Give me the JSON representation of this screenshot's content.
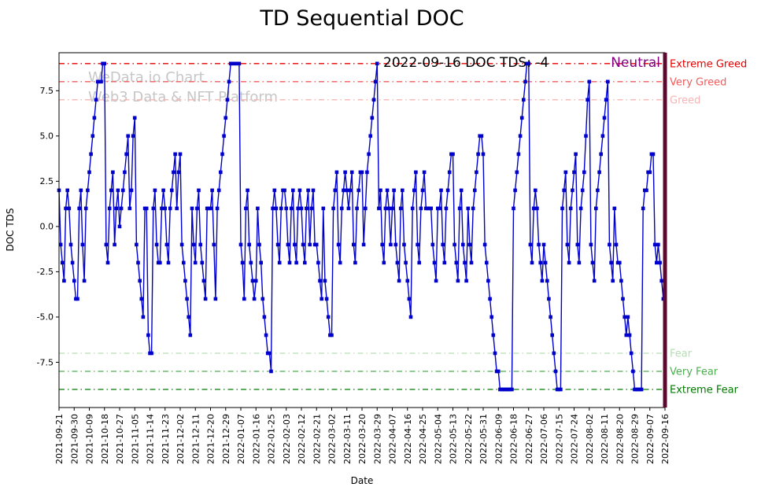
{
  "title": "TD Sequential DOC",
  "watermark": {
    "line1": "WeData.io Chart",
    "line2": "Web3 Data & NFT Platform"
  },
  "annotation": {
    "date_text": "2022-09-16 DOC TDS: -4",
    "sentiment": "Neutral",
    "sentiment_color": "#800080"
  },
  "chart_data": {
    "type": "line",
    "title": "TD Sequential DOC",
    "xlabel": "Date",
    "ylabel": "DOC TDS",
    "ylim": [
      -10,
      9.6
    ],
    "grid": false,
    "legend": "none",
    "y_ticks": [
      {
        "label": "7.5",
        "value": 7.5
      },
      {
        "label": "5.0",
        "value": 5
      },
      {
        "label": "2.5",
        "value": 2.5
      },
      {
        "label": "0.0",
        "value": 0
      },
      {
        "label": "-2.5",
        "value": -2.5
      },
      {
        "label": "-5.0",
        "value": -5
      },
      {
        "label": "-7.5",
        "value": -7.5
      }
    ],
    "x_tick_every": 9,
    "x_tick_labels": [
      "2021-09-21",
      "2021-09-30",
      "2021-10-09",
      "2021-10-18",
      "2021-10-27",
      "2021-11-05",
      "2021-11-14",
      "2021-11-23",
      "2021-12-02",
      "2021-12-11",
      "2021-12-20",
      "2021-12-29",
      "2022-01-07",
      "2022-01-16",
      "2022-01-25",
      "2022-02-03",
      "2022-02-12",
      "2022-02-21",
      "2022-03-02",
      "2022-03-11",
      "2022-03-20",
      "2022-03-29",
      "2022-04-07",
      "2022-04-16",
      "2022-04-25",
      "2022-05-04",
      "2022-05-13",
      "2022-05-22",
      "2022-05-31",
      "2022-06-09",
      "2022-06-18",
      "2022-06-27",
      "2022-07-06",
      "2022-07-15",
      "2022-07-24",
      "2022-08-02",
      "2022-08-11",
      "2022-08-20",
      "2022-08-29",
      "2022-09-07",
      "2022-09-16"
    ],
    "series": [
      {
        "name": "DOC TDS",
        "color": "#0000cc",
        "marker": "square",
        "values": [
          2,
          -1,
          -2,
          -3,
          1,
          2,
          1,
          -1,
          -2,
          -3,
          -4,
          -4,
          1,
          2,
          -1,
          -3,
          1,
          2,
          3,
          4,
          5,
          6,
          7,
          8,
          8,
          8,
          9,
          9,
          -1,
          -2,
          1,
          2,
          3,
          -1,
          1,
          2,
          0,
          1,
          2,
          3,
          4,
          5,
          1,
          2,
          5,
          6,
          -1,
          -2,
          -3,
          -4,
          -5,
          1,
          1,
          -6,
          -7,
          -7,
          1,
          2,
          -1,
          -2,
          -2,
          1,
          2,
          1,
          -1,
          -2,
          1,
          2,
          3,
          4,
          1,
          3,
          4,
          -1,
          -2,
          -3,
          -4,
          -5,
          -6,
          1,
          -1,
          -2,
          1,
          2,
          -1,
          -2,
          -3,
          -4,
          1,
          1,
          1,
          2,
          -1,
          -4,
          1,
          2,
          3,
          4,
          5,
          6,
          7,
          8,
          9,
          9,
          9,
          9,
          9,
          9,
          -1,
          -2,
          -4,
          1,
          2,
          -1,
          -2,
          -3,
          -4,
          -3,
          1,
          -1,
          -2,
          -4,
          -5,
          -6,
          -7,
          -7,
          -8,
          1,
          2,
          1,
          -1,
          -2,
          1,
          2,
          2,
          1,
          -1,
          -2,
          1,
          2,
          -1,
          -2,
          1,
          2,
          1,
          -1,
          -2,
          1,
          2,
          -1,
          1,
          2,
          -1,
          -1,
          -2,
          -3,
          -4,
          1,
          -3,
          -4,
          -5,
          -6,
          -6,
          1,
          2,
          3,
          -1,
          -2,
          1,
          2,
          3,
          2,
          1,
          2,
          3,
          -1,
          -2,
          1,
          2,
          3,
          3,
          -1,
          1,
          3,
          4,
          5,
          6,
          7,
          8,
          9,
          1,
          2,
          -1,
          -2,
          1,
          2,
          1,
          -1,
          1,
          2,
          -1,
          -2,
          -3,
          1,
          2,
          -1,
          -2,
          -3,
          -4,
          -5,
          1,
          2,
          3,
          -1,
          -2,
          1,
          2,
          3,
          1,
          1,
          1,
          1,
          -1,
          -2,
          -3,
          1,
          1,
          2,
          -1,
          -2,
          1,
          2,
          3,
          4,
          4,
          -1,
          -2,
          -3,
          1,
          2,
          -1,
          -2,
          -3,
          1,
          -1,
          -2,
          1,
          2,
          3,
          4,
          5,
          5,
          4,
          -1,
          -2,
          -3,
          -4,
          -5,
          -6,
          -7,
          -8,
          -8,
          -9,
          -9,
          -9,
          -9,
          -9,
          -9,
          -9,
          -9,
          1,
          2,
          3,
          4,
          5,
          6,
          7,
          8,
          9,
          9,
          -1,
          -2,
          1,
          2,
          1,
          -1,
          -2,
          -3,
          -1,
          -2,
          -3,
          -4,
          -5,
          -6,
          -7,
          -8,
          -9,
          -9,
          -9,
          1,
          2,
          3,
          -1,
          -2,
          1,
          2,
          3,
          4,
          -1,
          -2,
          1,
          2,
          3,
          5,
          7,
          8,
          -1,
          -2,
          -3,
          1,
          2,
          3,
          4,
          5,
          6,
          7,
          8,
          -1,
          -2,
          -3,
          1,
          -1,
          -2,
          -2,
          -3,
          -4,
          -5,
          -6,
          -5,
          -6,
          -7,
          -8,
          -9,
          -9,
          -9,
          -9,
          -9,
          1,
          2,
          2,
          3,
          3,
          4,
          4,
          -1,
          -2,
          -1,
          -2,
          -3,
          -4,
          -4
        ]
      }
    ],
    "reference_lines": [
      {
        "label": "Extreme Greed",
        "value": 9,
        "color": "#e60000"
      },
      {
        "label": "Very Greed",
        "value": 8,
        "color": "#f25c5c"
      },
      {
        "label": "Greed",
        "value": 7,
        "color": "#f8b4b4"
      },
      {
        "label": "Fear",
        "value": -7,
        "color": "#b4dfb4"
      },
      {
        "label": "Very Fear",
        "value": -8,
        "color": "#4caf50"
      },
      {
        "label": "Extreme Fear",
        "value": -9,
        "color": "#007a00"
      }
    ],
    "current_marker": {
      "x_label": "2022-09-16",
      "color": "#5c082f"
    }
  }
}
